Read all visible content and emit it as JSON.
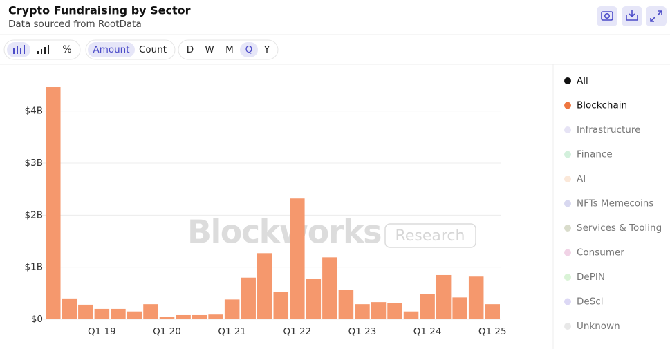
{
  "header": {
    "title": "Crypto Fundraising by Sector",
    "subtitle": "Data sourced from RootData"
  },
  "controls": {
    "metrics": [
      "Amount",
      "Count"
    ],
    "selected_metric": "Amount",
    "periods": [
      "D",
      "W",
      "M",
      "Q",
      "Y"
    ],
    "selected_period": "Q"
  },
  "watermark": {
    "brand": "Blockworks",
    "tag": "Research"
  },
  "chart_data": {
    "type": "bar",
    "color": "#f5986d",
    "categories": [
      null,
      null,
      null,
      "Q1 19",
      null,
      null,
      null,
      "Q1 20",
      null,
      null,
      null,
      "Q1 21",
      null,
      null,
      null,
      "Q1 22",
      null,
      null,
      null,
      "Q1 23",
      null,
      null,
      null,
      "Q1 24",
      null,
      null,
      null,
      "Q1 25"
    ],
    "values": [
      4.46,
      0.4,
      0.28,
      0.2,
      0.2,
      0.15,
      0.29,
      0.05,
      0.08,
      0.08,
      0.09,
      0.38,
      0.8,
      1.27,
      0.53,
      2.32,
      0.78,
      1.19,
      0.56,
      0.29,
      0.33,
      0.31,
      0.15,
      0.48,
      0.85,
      0.42,
      0.82,
      0.29
    ],
    "ylim": [
      0,
      4.5
    ],
    "yticks": [
      {
        "value": 0,
        "label": "$0"
      },
      {
        "value": 1,
        "label": "$1B"
      },
      {
        "value": 2,
        "label": "$2B"
      },
      {
        "value": 3,
        "label": "$3B"
      },
      {
        "value": 4,
        "label": "$4B"
      }
    ],
    "grid": true,
    "legend": [
      {
        "name": "All",
        "color": "#111111",
        "active": true
      },
      {
        "name": "Blockchain",
        "color": "#ee7640",
        "active": true
      },
      {
        "name": "Infrastructure",
        "color": "#e6e3f5",
        "active": false
      },
      {
        "name": "Finance",
        "color": "#d3f0dc",
        "active": false
      },
      {
        "name": "AI",
        "color": "#fbe8d9",
        "active": false
      },
      {
        "name": "NFTs Memecoins",
        "color": "#d8d8f0",
        "active": false
      },
      {
        "name": "Services & Tooling",
        "color": "#d9dccb",
        "active": false
      },
      {
        "name": "Consumer",
        "color": "#f1d3e6",
        "active": false
      },
      {
        "name": "DePIN",
        "color": "#d9f3d6",
        "active": false
      },
      {
        "name": "DeSci",
        "color": "#dcd8f5",
        "active": false
      },
      {
        "name": "Unknown",
        "color": "#e8e8e8",
        "active": false
      }
    ]
  }
}
